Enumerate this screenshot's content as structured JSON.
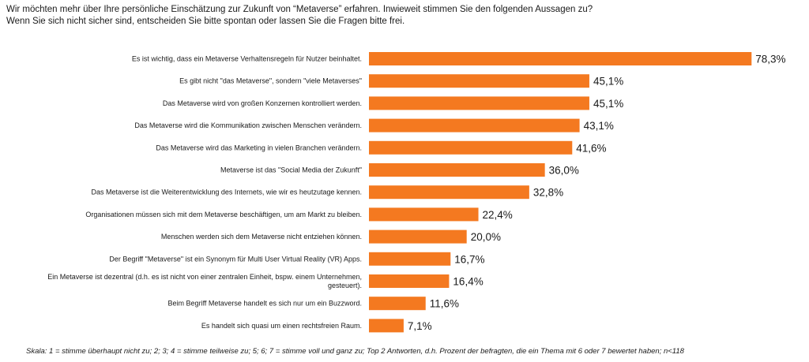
{
  "header": {
    "line1": "Wir möchten mehr über Ihre persönliche Einschätzung zur Zukunft von “Metaverse” erfahren. Inwieweit stimmen Sie den folgenden Aussagen zu?",
    "line2": "Wenn Sie sich nicht sicher sind, entscheiden Sie bitte spontan oder lassen Sie die Fragen bitte frei."
  },
  "footnote": "Skala: 1 = stimme überhaupt nicht zu; 2; 3; 4 = stimme teilweise zu; 5; 6; 7 = stimme voll und ganz zu; Top 2 Antworten, d.h. Prozent der befragten, die ein Thema mit 6 oder 7 bewertet haben; n<118",
  "colors": {
    "bar": "#F47920",
    "text": "#1a1a1a"
  },
  "chart_data": {
    "type": "bar",
    "orientation": "horizontal",
    "categories": [
      [
        "Es ist wichtig, dass ein Metaverse Verhaltensregeln für Nutzer beinhaltet."
      ],
      [
        "Es gibt nicht \"das Metaverse\", sondern \"viele Metaverses\""
      ],
      [
        "Das Metaverse wird von großen Konzernen kontrolliert werden."
      ],
      [
        "Das Metaverse wird die Kommunikation zwischen Menschen verändern."
      ],
      [
        "Das Metaverse wird das Marketing in vielen Branchen verändern."
      ],
      [
        "Metaverse ist das \"Social Media der Zukunft\""
      ],
      [
        "Das Metaverse ist die Weiterentwicklung des Internets, wie wir es heutzutage kennen."
      ],
      [
        "Organisationen müssen sich mit dem Metaverse beschäftigen, um am Markt zu bleiben."
      ],
      [
        "Menschen werden sich dem Metaverse nicht entziehen können."
      ],
      [
        "Der Begriff \"Metaverse\" ist ein Synonym für Multi User Virtual Reality (VR) Apps."
      ],
      [
        "Ein Metaverse ist dezentral (d.h. es ist nicht von einer zentralen Einheit, bspw. einem Unternehmen,",
        "gesteuert)."
      ],
      [
        "Beim Begriff Metaverse handelt es sich nur um ein Buzzword."
      ],
      [
        "Es handelt sich quasi um einen rechtsfreien Raum."
      ]
    ],
    "values": [
      78.3,
      45.1,
      45.1,
      43.1,
      41.6,
      36.0,
      32.8,
      22.4,
      20.0,
      16.7,
      16.4,
      11.6,
      7.1
    ],
    "value_labels": [
      "78,3%",
      "45,1%",
      "45,1%",
      "43,1%",
      "41,6%",
      "36,0%",
      "32,8%",
      "22,4%",
      "20,0%",
      "16,7%",
      "16,4%",
      "11,6%",
      "7,1%"
    ],
    "unit": "%",
    "xlim": [
      0,
      80
    ],
    "grid": false,
    "legend": "none"
  }
}
